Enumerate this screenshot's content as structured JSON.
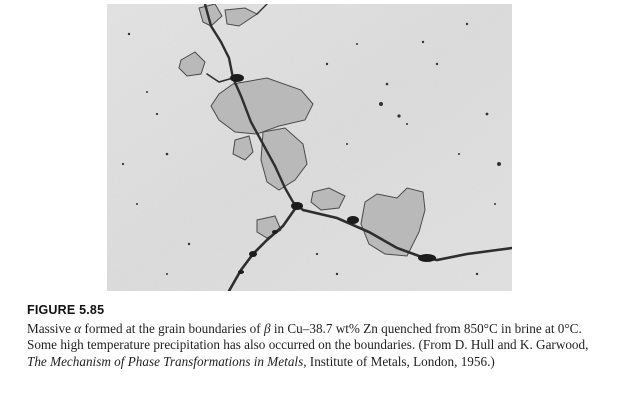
{
  "figure": {
    "label": "FIGURE 5.85",
    "caption": {
      "alpha": "α",
      "beta": "β",
      "part1": "Massive ",
      "part2": " formed at the grain boundaries of ",
      "part3": " in Cu–38.7 wt% Zn quenched from 850°C in brine at 0°C. Some high temperature precipitation has also occurred on the boundaries. (From D. Hull and K. Garwood, ",
      "book_title": "The Mechanism of Phase Transformations in Metals,",
      "part4": " Institute of Metals, London, 1956.)"
    }
  }
}
